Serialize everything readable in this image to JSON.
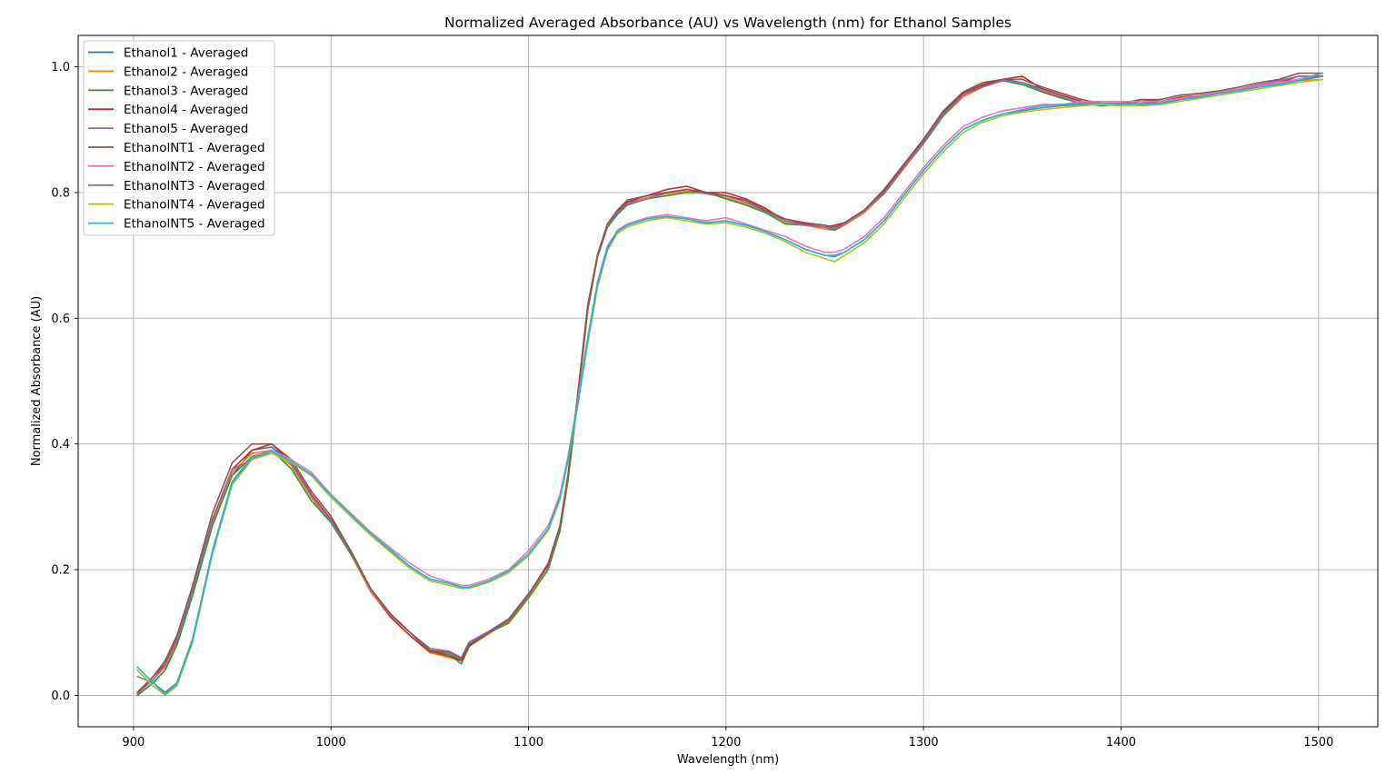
{
  "chart_data": {
    "type": "line",
    "title": "Normalized Averaged Absorbance (AU) vs Wavelength (nm) for Ethanol Samples",
    "xlabel": "Wavelength (nm)",
    "ylabel": "Normalized Absorbance (AU)",
    "xlim": [
      872,
      1530
    ],
    "ylim": [
      -0.05,
      1.05
    ],
    "xticks": [
      900,
      1000,
      1100,
      1200,
      1300,
      1400,
      1500
    ],
    "xtick_labels": [
      "900",
      "1000",
      "1100",
      "1200",
      "1300",
      "1400",
      "1500"
    ],
    "yticks": [
      0.0,
      0.2,
      0.4,
      0.6,
      0.8,
      1.0
    ],
    "ytick_labels": [
      "0.0",
      "0.2",
      "0.4",
      "0.6",
      "0.8",
      "1.0"
    ],
    "grid": true,
    "legend_position": "upper-left",
    "x": [
      902,
      910,
      916,
      922,
      930,
      940,
      950,
      960,
      970,
      980,
      990,
      1000,
      1010,
      1020,
      1030,
      1040,
      1050,
      1060,
      1066,
      1070,
      1080,
      1090,
      1100,
      1110,
      1116,
      1120,
      1125,
      1130,
      1135,
      1140,
      1145,
      1150,
      1160,
      1170,
      1180,
      1190,
      1200,
      1210,
      1220,
      1230,
      1240,
      1250,
      1255,
      1260,
      1270,
      1280,
      1290,
      1300,
      1310,
      1320,
      1330,
      1340,
      1350,
      1360,
      1370,
      1380,
      1390,
      1400,
      1410,
      1420,
      1430,
      1440,
      1450,
      1460,
      1470,
      1480,
      1490,
      1502
    ],
    "series": [
      {
        "name": "Ethanol1 - Averaged",
        "color": "#1f77b4",
        "values": [
          0.0,
          0.02,
          0.04,
          0.08,
          0.16,
          0.27,
          0.35,
          0.39,
          0.395,
          0.37,
          0.32,
          0.28,
          0.23,
          0.17,
          0.13,
          0.1,
          0.07,
          0.065,
          0.055,
          0.08,
          0.1,
          0.12,
          0.16,
          0.21,
          0.27,
          0.35,
          0.48,
          0.62,
          0.7,
          0.75,
          0.77,
          0.785,
          0.79,
          0.8,
          0.805,
          0.8,
          0.795,
          0.785,
          0.77,
          0.755,
          0.75,
          0.745,
          0.745,
          0.75,
          0.77,
          0.8,
          0.84,
          0.88,
          0.925,
          0.955,
          0.97,
          0.98,
          0.975,
          0.965,
          0.955,
          0.945,
          0.94,
          0.94,
          0.945,
          0.945,
          0.95,
          0.955,
          0.96,
          0.965,
          0.97,
          0.975,
          0.98,
          0.985
        ]
      },
      {
        "name": "Ethanol2 - Averaged",
        "color": "#ff7f0e",
        "values": [
          0.005,
          0.025,
          0.045,
          0.085,
          0.165,
          0.275,
          0.355,
          0.385,
          0.39,
          0.365,
          0.315,
          0.275,
          0.225,
          0.165,
          0.125,
          0.095,
          0.068,
          0.06,
          0.055,
          0.078,
          0.098,
          0.118,
          0.158,
          0.205,
          0.265,
          0.345,
          0.475,
          0.615,
          0.7,
          0.748,
          0.768,
          0.782,
          0.792,
          0.798,
          0.802,
          0.798,
          0.792,
          0.782,
          0.768,
          0.752,
          0.748,
          0.742,
          0.74,
          0.748,
          0.768,
          0.798,
          0.838,
          0.878,
          0.922,
          0.952,
          0.968,
          0.978,
          0.972,
          0.962,
          0.952,
          0.942,
          0.94,
          0.938,
          0.942,
          0.945,
          0.948,
          0.952,
          0.958,
          0.962,
          0.968,
          0.972,
          0.978,
          0.98
        ]
      },
      {
        "name": "Ethanol3 - Averaged",
        "color": "#2ca02c",
        "values": [
          0.0,
          0.02,
          0.04,
          0.08,
          0.16,
          0.27,
          0.35,
          0.38,
          0.39,
          0.36,
          0.31,
          0.275,
          0.225,
          0.17,
          0.13,
          0.1,
          0.072,
          0.065,
          0.05,
          0.078,
          0.1,
          0.115,
          0.155,
          0.2,
          0.262,
          0.342,
          0.472,
          0.612,
          0.698,
          0.745,
          0.765,
          0.78,
          0.79,
          0.795,
          0.8,
          0.8,
          0.79,
          0.78,
          0.768,
          0.75,
          0.748,
          0.745,
          0.74,
          0.75,
          0.772,
          0.798,
          0.84,
          0.878,
          0.922,
          0.955,
          0.97,
          0.978,
          0.972,
          0.96,
          0.95,
          0.942,
          0.938,
          0.94,
          0.945,
          0.94,
          0.948,
          0.955,
          0.96,
          0.962,
          0.97,
          0.975,
          0.98,
          0.99
        ]
      },
      {
        "name": "Ethanol4 - Averaged",
        "color": "#d62728",
        "values": [
          0.005,
          0.03,
          0.05,
          0.09,
          0.17,
          0.28,
          0.36,
          0.39,
          0.4,
          0.37,
          0.32,
          0.28,
          0.23,
          0.17,
          0.125,
          0.095,
          0.07,
          0.062,
          0.055,
          0.08,
          0.1,
          0.12,
          0.16,
          0.21,
          0.27,
          0.35,
          0.48,
          0.62,
          0.702,
          0.75,
          0.77,
          0.785,
          0.795,
          0.805,
          0.81,
          0.8,
          0.8,
          0.79,
          0.775,
          0.755,
          0.75,
          0.745,
          0.748,
          0.752,
          0.772,
          0.802,
          0.842,
          0.882,
          0.928,
          0.958,
          0.972,
          0.98,
          0.985,
          0.965,
          0.955,
          0.945,
          0.94,
          0.94,
          0.948,
          0.945,
          0.952,
          0.955,
          0.96,
          0.965,
          0.97,
          0.975,
          0.985,
          0.985
        ]
      },
      {
        "name": "Ethanol5 - Averaged",
        "color": "#9467bd",
        "values": [
          0.003,
          0.025,
          0.048,
          0.088,
          0.168,
          0.278,
          0.36,
          0.375,
          0.39,
          0.368,
          0.318,
          0.278,
          0.228,
          0.168,
          0.128,
          0.1,
          0.075,
          0.07,
          0.06,
          0.085,
          0.102,
          0.122,
          0.162,
          0.205,
          0.268,
          0.348,
          0.478,
          0.618,
          0.7,
          0.748,
          0.768,
          0.782,
          0.79,
          0.8,
          0.805,
          0.798,
          0.795,
          0.785,
          0.77,
          0.755,
          0.748,
          0.745,
          0.742,
          0.75,
          0.77,
          0.8,
          0.84,
          0.88,
          0.925,
          0.955,
          0.968,
          0.978,
          0.975,
          0.962,
          0.952,
          0.942,
          0.94,
          0.94,
          0.945,
          0.942,
          0.95,
          0.955,
          0.96,
          0.965,
          0.972,
          0.978,
          0.985,
          0.985
        ]
      },
      {
        "name": "EthanolNT1 - Averaged",
        "color": "#8c564b",
        "values": [
          0.003,
          0.03,
          0.055,
          0.095,
          0.175,
          0.29,
          0.37,
          0.4,
          0.4,
          0.375,
          0.325,
          0.285,
          0.23,
          0.17,
          0.13,
          0.1,
          0.072,
          0.068,
          0.058,
          0.082,
          0.1,
          0.12,
          0.16,
          0.208,
          0.27,
          0.35,
          0.48,
          0.62,
          0.702,
          0.75,
          0.772,
          0.788,
          0.795,
          0.8,
          0.805,
          0.8,
          0.795,
          0.788,
          0.772,
          0.758,
          0.752,
          0.748,
          0.745,
          0.752,
          0.772,
          0.805,
          0.845,
          0.885,
          0.93,
          0.96,
          0.975,
          0.98,
          0.98,
          0.968,
          0.958,
          0.948,
          0.942,
          0.942,
          0.948,
          0.948,
          0.955,
          0.958,
          0.962,
          0.968,
          0.975,
          0.98,
          0.99,
          0.99
        ]
      },
      {
        "name": "EthanolNT2 - Averaged",
        "color": "#e377c2",
        "values": [
          0.04,
          0.015,
          0.003,
          0.02,
          0.09,
          0.23,
          0.34,
          0.38,
          0.39,
          0.375,
          0.355,
          0.32,
          0.29,
          0.26,
          0.235,
          0.21,
          0.19,
          0.18,
          0.175,
          0.175,
          0.185,
          0.2,
          0.23,
          0.27,
          0.32,
          0.38,
          0.47,
          0.57,
          0.66,
          0.715,
          0.74,
          0.75,
          0.76,
          0.765,
          0.76,
          0.755,
          0.76,
          0.75,
          0.74,
          0.73,
          0.715,
          0.705,
          0.705,
          0.71,
          0.73,
          0.76,
          0.8,
          0.84,
          0.875,
          0.905,
          0.92,
          0.93,
          0.935,
          0.94,
          0.94,
          0.945,
          0.945,
          0.945,
          0.945,
          0.945,
          0.95,
          0.955,
          0.96,
          0.965,
          0.97,
          0.975,
          0.98,
          0.99
        ]
      },
      {
        "name": "EthanolNT3 - Averaged",
        "color": "#7f7f7f",
        "values": [
          0.03,
          0.02,
          0.005,
          0.02,
          0.09,
          0.23,
          0.34,
          0.38,
          0.385,
          0.37,
          0.35,
          0.315,
          0.285,
          0.255,
          0.23,
          0.205,
          0.185,
          0.178,
          0.172,
          0.172,
          0.182,
          0.198,
          0.225,
          0.265,
          0.315,
          0.375,
          0.465,
          0.565,
          0.655,
          0.712,
          0.738,
          0.748,
          0.758,
          0.762,
          0.758,
          0.752,
          0.755,
          0.748,
          0.738,
          0.725,
          0.71,
          0.7,
          0.7,
          0.705,
          0.725,
          0.755,
          0.795,
          0.835,
          0.87,
          0.9,
          0.915,
          0.925,
          0.93,
          0.935,
          0.938,
          0.94,
          0.942,
          0.942,
          0.94,
          0.942,
          0.948,
          0.952,
          0.958,
          0.962,
          0.968,
          0.972,
          0.978,
          0.985
        ]
      },
      {
        "name": "EthanolNT4 - Averaged",
        "color": "#bcbd22",
        "values": [
          0.04,
          0.015,
          0.0,
          0.015,
          0.085,
          0.225,
          0.335,
          0.375,
          0.385,
          0.37,
          0.35,
          0.315,
          0.285,
          0.255,
          0.228,
          0.202,
          0.182,
          0.175,
          0.17,
          0.17,
          0.18,
          0.195,
          0.222,
          0.262,
          0.312,
          0.372,
          0.462,
          0.56,
          0.65,
          0.708,
          0.735,
          0.745,
          0.755,
          0.76,
          0.755,
          0.75,
          0.752,
          0.745,
          0.735,
          0.722,
          0.705,
          0.695,
          0.69,
          0.7,
          0.72,
          0.75,
          0.79,
          0.83,
          0.865,
          0.895,
          0.912,
          0.922,
          0.928,
          0.932,
          0.935,
          0.938,
          0.94,
          0.938,
          0.938,
          0.94,
          0.945,
          0.95,
          0.955,
          0.96,
          0.965,
          0.97,
          0.975,
          0.98
        ]
      },
      {
        "name": "EthanolNT5 - Averaged",
        "color": "#17becf",
        "values": [
          0.045,
          0.02,
          0.002,
          0.018,
          0.088,
          0.228,
          0.338,
          0.378,
          0.388,
          0.372,
          0.352,
          0.318,
          0.288,
          0.258,
          0.232,
          0.205,
          0.185,
          0.178,
          0.172,
          0.172,
          0.182,
          0.198,
          0.225,
          0.265,
          0.315,
          0.375,
          0.465,
          0.565,
          0.655,
          0.71,
          0.738,
          0.748,
          0.758,
          0.762,
          0.758,
          0.752,
          0.755,
          0.748,
          0.738,
          0.725,
          0.71,
          0.7,
          0.698,
          0.705,
          0.725,
          0.755,
          0.795,
          0.835,
          0.87,
          0.9,
          0.915,
          0.925,
          0.932,
          0.938,
          0.94,
          0.942,
          0.942,
          0.942,
          0.94,
          0.942,
          0.948,
          0.952,
          0.958,
          0.962,
          0.968,
          0.972,
          0.978,
          0.99
        ]
      }
    ]
  }
}
